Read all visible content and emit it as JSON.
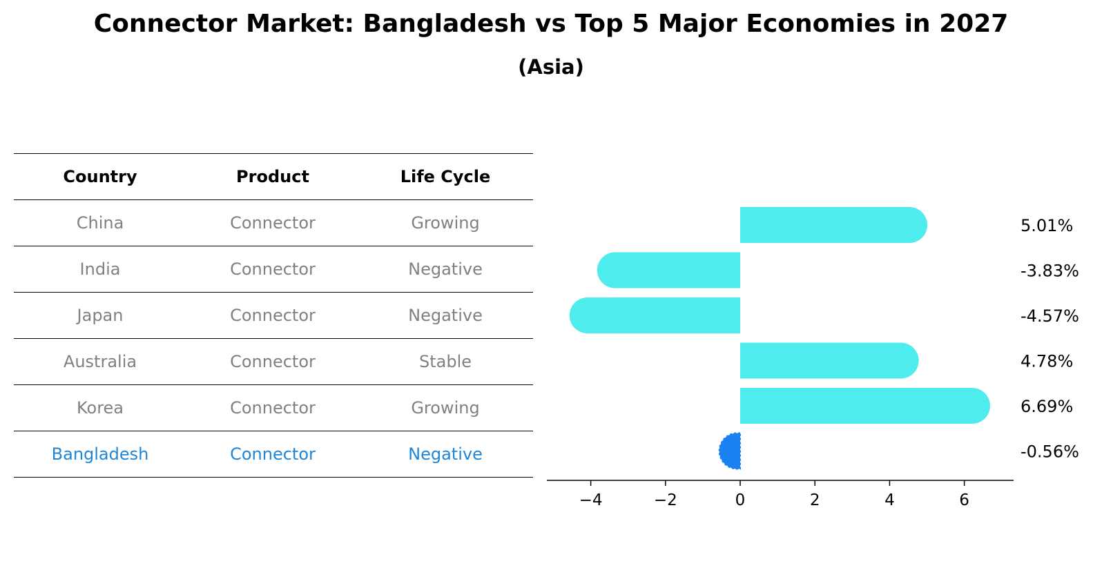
{
  "title": "Connector Market: Bangladesh vs Top 5 Major Economies in 2027",
  "subtitle": "(Asia)",
  "table": {
    "headers": [
      "Country",
      "Product",
      "Life Cycle"
    ],
    "rows": [
      {
        "country": "China",
        "product": "Connector",
        "life_cycle": "Growing"
      },
      {
        "country": "India",
        "product": "Connector",
        "life_cycle": "Negative"
      },
      {
        "country": "Japan",
        "product": "Connector",
        "life_cycle": "Negative"
      },
      {
        "country": "Australia",
        "product": "Connector",
        "life_cycle": "Stable"
      },
      {
        "country": "Korea",
        "product": "Connector",
        "life_cycle": "Growing"
      },
      {
        "country": "Bangladesh",
        "product": "Connector",
        "life_cycle": "Negative"
      }
    ]
  },
  "colors": {
    "bar": "#4eecec",
    "highlight": "#1a82f0",
    "muted_text": "#808080",
    "highlight_text": "#1f85d6"
  },
  "chart_data": {
    "type": "bar",
    "orientation": "horizontal",
    "categories": [
      "China",
      "India",
      "Japan",
      "Australia",
      "Korea",
      "Bangladesh"
    ],
    "values": [
      5.01,
      -3.83,
      -4.57,
      4.78,
      6.69,
      -0.56
    ],
    "value_labels": [
      "5.01%",
      "-3.83%",
      "-4.57%",
      "4.78%",
      "6.69%",
      "-0.56%"
    ],
    "highlight_category": "Bangladesh",
    "xlim": [
      -5.2,
      7.2
    ],
    "xticks": [
      -4,
      -2,
      0,
      2,
      4,
      6
    ],
    "xtick_labels": [
      "−4",
      "−2",
      "0",
      "2",
      "4",
      "6"
    ],
    "grid": false
  }
}
